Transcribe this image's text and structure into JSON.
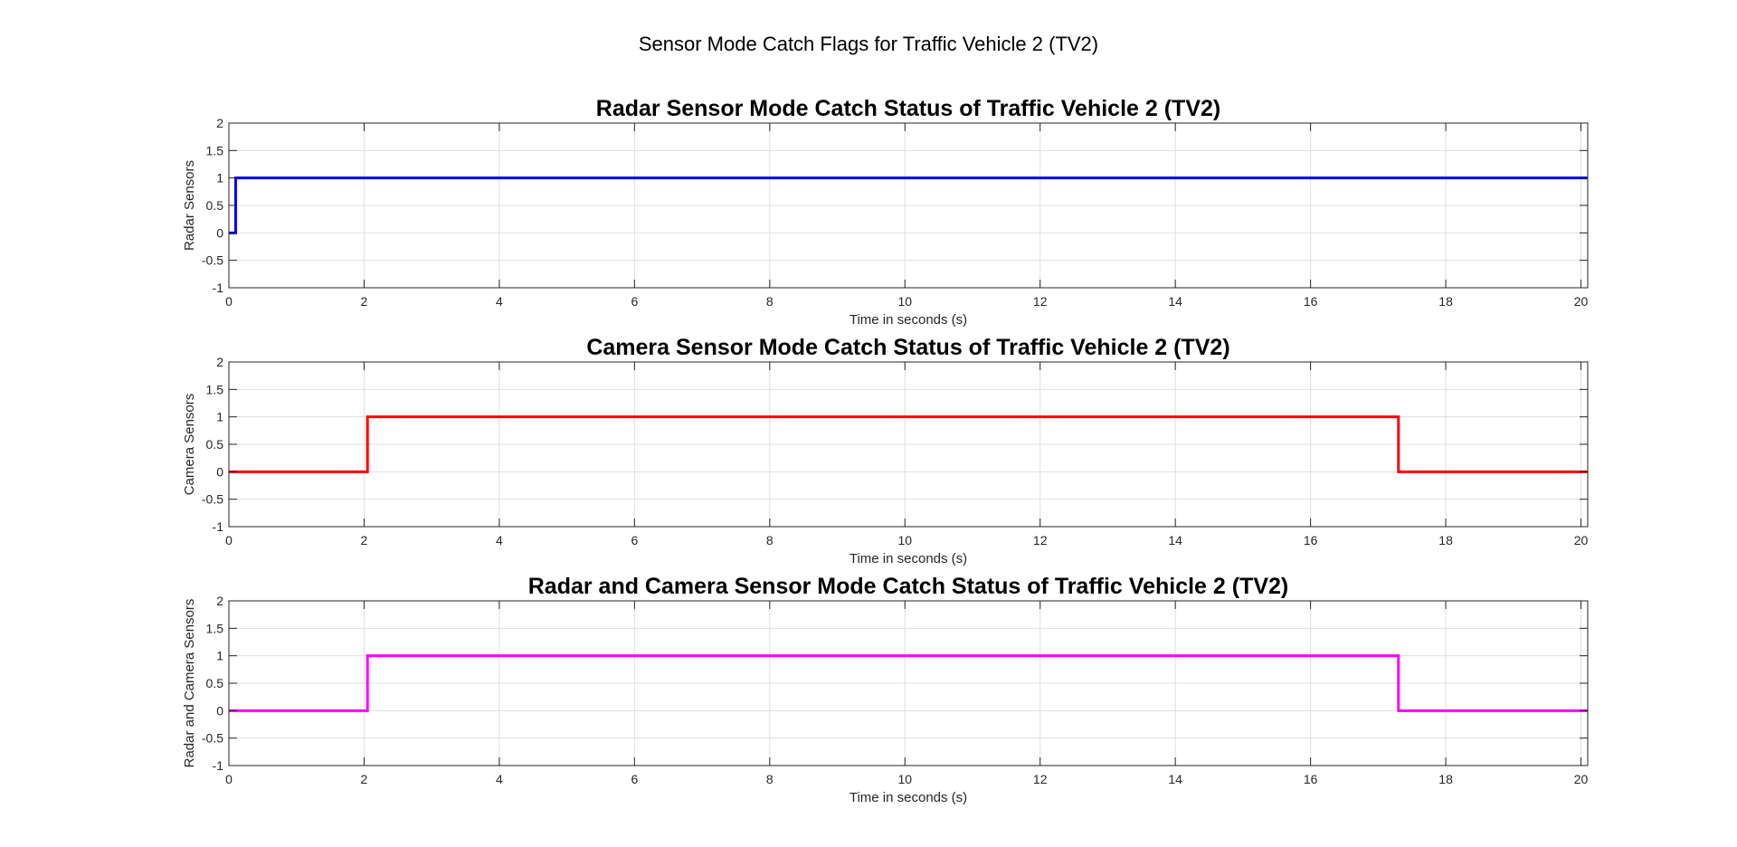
{
  "suptitle": "Sensor Mode Catch Flags for Traffic Vehicle 2 (TV2)",
  "chart_data": [
    {
      "type": "line",
      "title": "Radar Sensor Mode Catch Status of Traffic Vehicle 2 (TV2)",
      "xlabel": "Time in seconds (s)",
      "ylabel": "Radar Sensors",
      "xlim": [
        0,
        20.1
      ],
      "ylim": [
        -1,
        2
      ],
      "xticks": [
        0,
        2,
        4,
        6,
        8,
        10,
        12,
        14,
        16,
        18,
        20
      ],
      "yticks": [
        -1,
        -0.5,
        0,
        0.5,
        1,
        1.5,
        2
      ],
      "xtick_labels": [
        "0",
        "2",
        "4",
        "6",
        "8",
        "10",
        "12",
        "14",
        "16",
        "18",
        "20"
      ],
      "ytick_labels": [
        "-1",
        "-0.5",
        "0",
        "0.5",
        "1",
        "1.5",
        "2"
      ],
      "grid": true,
      "series": [
        {
          "color": "#0000ff",
          "x": [
            0,
            0.1,
            0.1,
            20.1
          ],
          "y": [
            0,
            0,
            1,
            1
          ]
        }
      ]
    },
    {
      "type": "line",
      "title": "Camera Sensor Mode Catch Status of Traffic Vehicle 2 (TV2)",
      "xlabel": "Time in seconds (s)",
      "ylabel": "Camera Sensors",
      "xlim": [
        0,
        20.1
      ],
      "ylim": [
        -1,
        2
      ],
      "xticks": [
        0,
        2,
        4,
        6,
        8,
        10,
        12,
        14,
        16,
        18,
        20
      ],
      "yticks": [
        -1,
        -0.5,
        0,
        0.5,
        1,
        1.5,
        2
      ],
      "xtick_labels": [
        "0",
        "2",
        "4",
        "6",
        "8",
        "10",
        "12",
        "14",
        "16",
        "18",
        "20"
      ],
      "ytick_labels": [
        "-1",
        "-0.5",
        "0",
        "0.5",
        "1",
        "1.5",
        "2"
      ],
      "grid": true,
      "series": [
        {
          "color": "#ff0000",
          "x": [
            0,
            2.05,
            2.05,
            17.3,
            17.3,
            20.1
          ],
          "y": [
            0,
            0,
            1,
            1,
            0,
            0
          ]
        }
      ]
    },
    {
      "type": "line",
      "title": "Radar and Camera Sensor Mode Catch Status of Traffic Vehicle 2 (TV2)",
      "xlabel": "Time in seconds (s)",
      "ylabel": "Radar and Camera Sensors",
      "xlim": [
        0,
        20.1
      ],
      "ylim": [
        -1,
        2
      ],
      "xticks": [
        0,
        2,
        4,
        6,
        8,
        10,
        12,
        14,
        16,
        18,
        20
      ],
      "yticks": [
        -1,
        -0.5,
        0,
        0.5,
        1,
        1.5,
        2
      ],
      "xtick_labels": [
        "0",
        "2",
        "4",
        "6",
        "8",
        "10",
        "12",
        "14",
        "16",
        "18",
        "20"
      ],
      "ytick_labels": [
        "-1",
        "-0.5",
        "0",
        "0.5",
        "1",
        "1.5",
        "2"
      ],
      "grid": true,
      "series": [
        {
          "color": "#ff00ff",
          "x": [
            0,
            2.05,
            2.05,
            17.3,
            17.3,
            20.1
          ],
          "y": [
            0,
            0,
            1,
            1,
            0,
            0
          ]
        }
      ]
    }
  ]
}
